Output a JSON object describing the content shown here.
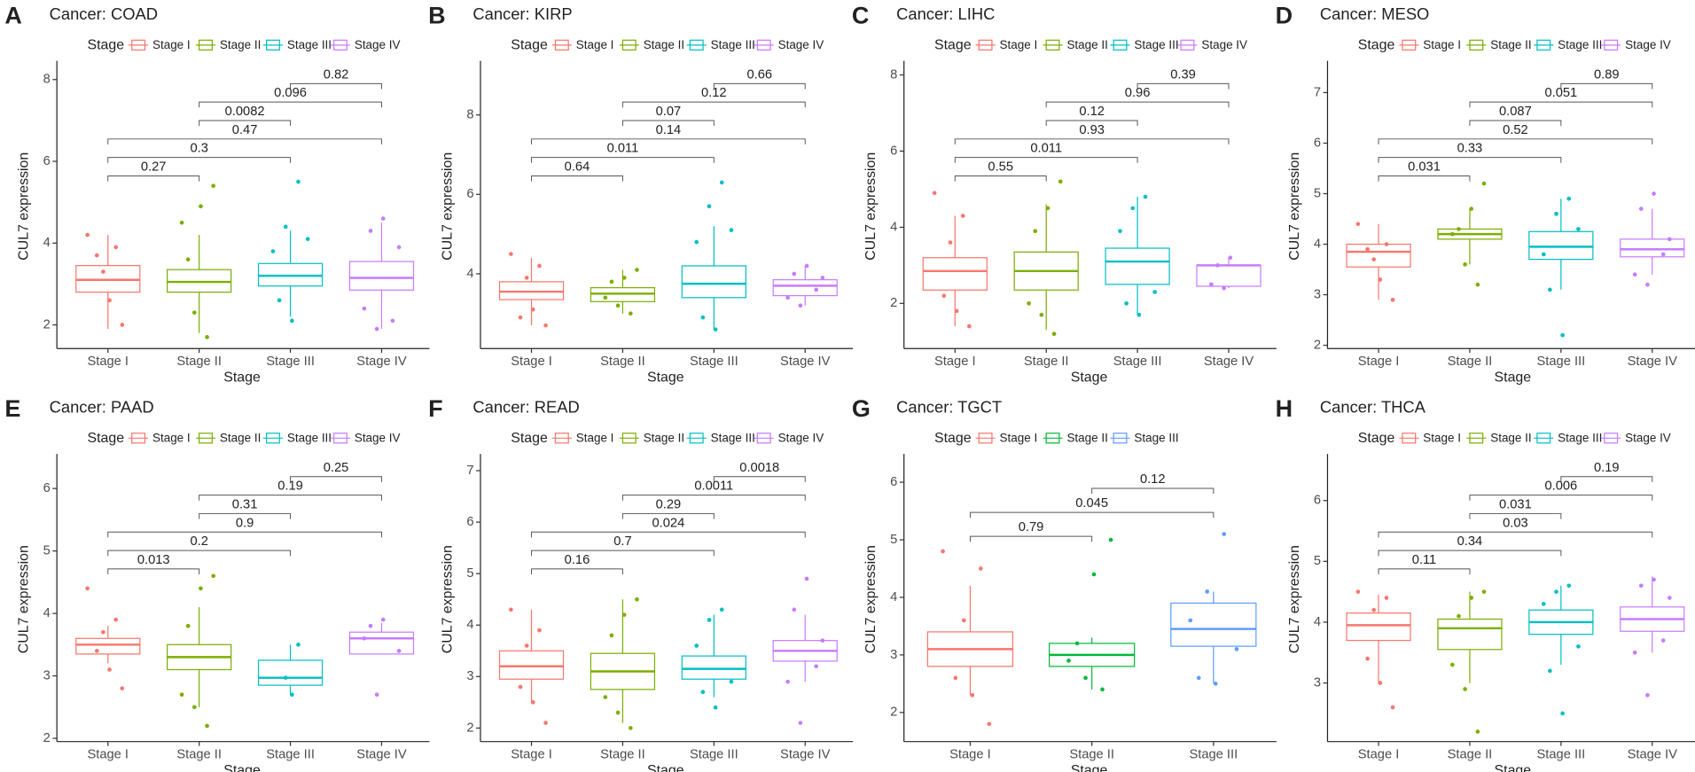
{
  "chart_data": [
    {
      "type": "box",
      "label": "A",
      "title": "Cancer: COAD",
      "legend_title": "Stage",
      "x_label": "Stage",
      "y_label": "CUL7 expression",
      "categories": [
        "Stage I",
        "Stage II",
        "Stage III",
        "Stage IV"
      ],
      "ylim": [
        1.5,
        8.3
      ],
      "yticks": [
        2,
        4,
        6,
        8
      ],
      "series": [
        {
          "name": "Stage I",
          "color": "#F8766D",
          "q1": 2.8,
          "median": 3.1,
          "q3": 3.45,
          "whisker_low": 1.9,
          "whisker_high": 4.2,
          "points": [
            4.2,
            2.0,
            3.9,
            2.6,
            3.3,
            3.7
          ]
        },
        {
          "name": "Stage II",
          "color": "#7CAE00",
          "q1": 2.8,
          "median": 3.05,
          "q3": 3.35,
          "whisker_low": 1.8,
          "whisker_high": 4.2,
          "points": [
            5.4,
            1.7,
            4.9,
            2.3,
            3.6,
            4.5
          ]
        },
        {
          "name": "Stage III",
          "color": "#00BFC4",
          "q1": 2.95,
          "median": 3.2,
          "q3": 3.5,
          "whisker_low": 2.2,
          "whisker_high": 4.3,
          "points": [
            5.5,
            2.1,
            4.4,
            2.6,
            3.8,
            4.1
          ]
        },
        {
          "name": "Stage IV",
          "color": "#C77CFF",
          "q1": 2.85,
          "median": 3.15,
          "q3": 3.55,
          "whisker_low": 1.9,
          "whisker_high": 4.5,
          "points": [
            4.6,
            1.9,
            4.3,
            2.4,
            3.9,
            2.1
          ]
        }
      ],
      "comparisons": [
        {
          "groups": [
            "Stage I",
            "Stage II"
          ],
          "p": 0.27
        },
        {
          "groups": [
            "Stage I",
            "Stage III"
          ],
          "p": 0.3
        },
        {
          "groups": [
            "Stage I",
            "Stage IV"
          ],
          "p": 0.47
        },
        {
          "groups": [
            "Stage II",
            "Stage III"
          ],
          "p": 0.0082
        },
        {
          "groups": [
            "Stage II",
            "Stage IV"
          ],
          "p": 0.096
        },
        {
          "groups": [
            "Stage III",
            "Stage IV"
          ],
          "p": 0.82
        }
      ]
    },
    {
      "type": "box",
      "label": "B",
      "title": "Cancer: KIRP",
      "legend_title": "Stage",
      "x_label": "Stage",
      "y_label": "CUL7 expression",
      "categories": [
        "Stage I",
        "Stage II",
        "Stage III",
        "Stage IV"
      ],
      "ylim": [
        2.2,
        9.2
      ],
      "yticks": [
        4,
        6,
        8
      ],
      "series": [
        {
          "name": "Stage I",
          "color": "#F8766D",
          "q1": 3.35,
          "median": 3.55,
          "q3": 3.8,
          "whisker_low": 2.7,
          "whisker_high": 4.4,
          "points": [
            4.5,
            2.7,
            4.2,
            3.1,
            3.9,
            2.9
          ]
        },
        {
          "name": "Stage II",
          "color": "#7CAE00",
          "q1": 3.3,
          "median": 3.5,
          "q3": 3.65,
          "whisker_low": 3.0,
          "whisker_high": 4.1,
          "points": [
            4.1,
            3.0,
            3.9,
            3.2,
            3.8,
            3.4
          ]
        },
        {
          "name": "Stage III",
          "color": "#00BFC4",
          "q1": 3.4,
          "median": 3.75,
          "q3": 4.2,
          "whisker_low": 2.6,
          "whisker_high": 5.2,
          "points": [
            6.3,
            2.6,
            5.7,
            2.9,
            4.8,
            5.1
          ]
        },
        {
          "name": "Stage IV",
          "color": "#C77CFF",
          "q1": 3.45,
          "median": 3.7,
          "q3": 3.85,
          "whisker_low": 3.2,
          "whisker_high": 4.2,
          "points": [
            4.2,
            3.2,
            4.0,
            3.4,
            3.9,
            3.6
          ]
        }
      ],
      "comparisons": [
        {
          "groups": [
            "Stage I",
            "Stage II"
          ],
          "p": 0.64
        },
        {
          "groups": [
            "Stage I",
            "Stage III"
          ],
          "p": 0.011
        },
        {
          "groups": [
            "Stage I",
            "Stage IV"
          ],
          "p": 0.14
        },
        {
          "groups": [
            "Stage II",
            "Stage III"
          ],
          "p": 0.07
        },
        {
          "groups": [
            "Stage II",
            "Stage IV"
          ],
          "p": 0.12
        },
        {
          "groups": [
            "Stage III",
            "Stage IV"
          ],
          "p": 0.66
        }
      ]
    },
    {
      "type": "box",
      "label": "C",
      "title": "Cancer: LIHC",
      "legend_title": "Stage",
      "x_label": "Stage",
      "y_label": "CUL7 expression",
      "categories": [
        "Stage I",
        "Stage II",
        "Stage III",
        "Stage IV"
      ],
      "ylim": [
        0.9,
        8.2
      ],
      "yticks": [
        2,
        4,
        6,
        8
      ],
      "series": [
        {
          "name": "Stage I",
          "color": "#F8766D",
          "q1": 2.35,
          "median": 2.85,
          "q3": 3.2,
          "whisker_low": 1.4,
          "whisker_high": 4.3,
          "points": [
            4.9,
            1.4,
            4.3,
            1.8,
            3.6,
            2.2
          ]
        },
        {
          "name": "Stage II",
          "color": "#7CAE00",
          "q1": 2.35,
          "median": 2.85,
          "q3": 3.35,
          "whisker_low": 1.3,
          "whisker_high": 4.6,
          "points": [
            5.2,
            1.2,
            4.5,
            1.7,
            3.9,
            2.0
          ]
        },
        {
          "name": "Stage III",
          "color": "#00BFC4",
          "q1": 2.5,
          "median": 3.1,
          "q3": 3.45,
          "whisker_low": 1.7,
          "whisker_high": 4.8,
          "points": [
            4.8,
            1.7,
            4.5,
            2.0,
            3.9,
            2.3
          ]
        },
        {
          "name": "Stage IV",
          "color": "#C77CFF",
          "q1": 2.45,
          "median": 3.0,
          "q3": 3.0,
          "whisker_low": 2.4,
          "whisker_high": 3.2,
          "points": [
            3.2,
            2.4,
            3.0,
            2.5
          ]
        }
      ],
      "comparisons": [
        {
          "groups": [
            "Stage I",
            "Stage II"
          ],
          "p": 0.55
        },
        {
          "groups": [
            "Stage I",
            "Stage III"
          ],
          "p": 0.011
        },
        {
          "groups": [
            "Stage I",
            "Stage IV"
          ],
          "p": 0.93
        },
        {
          "groups": [
            "Stage II",
            "Stage III"
          ],
          "p": 0.12
        },
        {
          "groups": [
            "Stage II",
            "Stage IV"
          ],
          "p": 0.96
        },
        {
          "groups": [
            "Stage III",
            "Stage IV"
          ],
          "p": 0.39
        }
      ]
    },
    {
      "type": "box",
      "label": "D",
      "title": "Cancer: MESO",
      "legend_title": "Stage",
      "x_label": "Stage",
      "y_label": "CUL7 expression",
      "categories": [
        "Stage I",
        "Stage II",
        "Stage III",
        "Stage IV"
      ],
      "ylim": [
        2,
        7.5
      ],
      "yticks": [
        2,
        3,
        4,
        5,
        6,
        7
      ],
      "series": [
        {
          "name": "Stage I",
          "color": "#F8766D",
          "q1": 3.55,
          "median": 3.85,
          "q3": 4.0,
          "whisker_low": 2.9,
          "whisker_high": 4.4,
          "points": [
            4.4,
            2.9,
            4.0,
            3.3,
            3.7,
            3.9
          ]
        },
        {
          "name": "Stage II",
          "color": "#7CAE00",
          "q1": 4.1,
          "median": 4.2,
          "q3": 4.3,
          "whisker_low": 3.6,
          "whisker_high": 4.7,
          "points": [
            5.2,
            3.2,
            4.7,
            3.6,
            4.3,
            4.2
          ]
        },
        {
          "name": "Stage III",
          "color": "#00BFC4",
          "q1": 3.7,
          "median": 3.95,
          "q3": 4.25,
          "whisker_low": 3.1,
          "whisker_high": 4.9,
          "points": [
            4.9,
            2.2,
            4.6,
            3.1,
            3.8,
            4.3
          ]
        },
        {
          "name": "Stage IV",
          "color": "#C77CFF",
          "q1": 3.75,
          "median": 3.9,
          "q3": 4.1,
          "whisker_low": 3.4,
          "whisker_high": 4.7,
          "points": [
            5.0,
            3.2,
            4.7,
            3.4,
            4.1,
            3.8
          ]
        }
      ],
      "comparisons": [
        {
          "groups": [
            "Stage I",
            "Stage II"
          ],
          "p": 0.031
        },
        {
          "groups": [
            "Stage I",
            "Stage III"
          ],
          "p": 0.33
        },
        {
          "groups": [
            "Stage I",
            "Stage IV"
          ],
          "p": 0.52
        },
        {
          "groups": [
            "Stage II",
            "Stage III"
          ],
          "p": 0.087
        },
        {
          "groups": [
            "Stage II",
            "Stage IV"
          ],
          "p": 0.051
        },
        {
          "groups": [
            "Stage III",
            "Stage IV"
          ],
          "p": 0.89
        }
      ]
    },
    {
      "type": "box",
      "label": "E",
      "title": "Cancer: PAAD",
      "legend_title": "Stage",
      "x_label": "Stage",
      "y_label": "CUL7 expression",
      "categories": [
        "Stage I",
        "Stage II",
        "Stage III",
        "Stage IV"
      ],
      "ylim": [
        2,
        6.45
      ],
      "yticks": [
        2,
        3,
        4,
        5,
        6
      ],
      "series": [
        {
          "name": "Stage I",
          "color": "#F8766D",
          "q1": 3.35,
          "median": 3.5,
          "q3": 3.6,
          "whisker_low": 3.2,
          "whisker_high": 3.8,
          "points": [
            4.4,
            2.8,
            3.9,
            3.1,
            3.7,
            3.4
          ]
        },
        {
          "name": "Stage II",
          "color": "#7CAE00",
          "q1": 3.1,
          "median": 3.3,
          "q3": 3.5,
          "whisker_low": 2.5,
          "whisker_high": 4.1,
          "points": [
            4.6,
            2.2,
            4.4,
            2.5,
            3.8,
            2.7
          ]
        },
        {
          "name": "Stage III",
          "color": "#00BFC4",
          "q1": 2.85,
          "median": 2.97,
          "q3": 3.25,
          "whisker_low": 2.7,
          "whisker_high": 3.5,
          "points": [
            3.5,
            2.7,
            2.97
          ]
        },
        {
          "name": "Stage IV",
          "color": "#C77CFF",
          "q1": 3.35,
          "median": 3.6,
          "q3": 3.7,
          "whisker_low": 3.35,
          "whisker_high": 3.85,
          "points": [
            3.9,
            2.7,
            3.8,
            3.6,
            3.4
          ]
        }
      ],
      "comparisons": [
        {
          "groups": [
            "Stage I",
            "Stage II"
          ],
          "p": 0.013
        },
        {
          "groups": [
            "Stage I",
            "Stage III"
          ],
          "p": 0.2
        },
        {
          "groups": [
            "Stage I",
            "Stage IV"
          ],
          "p": 0.9
        },
        {
          "groups": [
            "Stage II",
            "Stage III"
          ],
          "p": 0.31
        },
        {
          "groups": [
            "Stage II",
            "Stage IV"
          ],
          "p": 0.19
        },
        {
          "groups": [
            "Stage III",
            "Stage IV"
          ],
          "p": 0.25
        }
      ]
    },
    {
      "type": "box",
      "label": "F",
      "title": "Cancer: READ",
      "legend_title": "Stage",
      "x_label": "Stage",
      "y_label": "CUL7 expression",
      "categories": [
        "Stage I",
        "Stage II",
        "Stage III",
        "Stage IV"
      ],
      "ylim": [
        1.8,
        7.2
      ],
      "yticks": [
        2,
        3,
        4,
        5,
        6,
        7
      ],
      "series": [
        {
          "name": "Stage I",
          "color": "#F8766D",
          "q1": 2.95,
          "median": 3.2,
          "q3": 3.5,
          "whisker_low": 2.5,
          "whisker_high": 4.3,
          "points": [
            4.3,
            2.1,
            3.9,
            2.5,
            3.6,
            2.8
          ]
        },
        {
          "name": "Stage II",
          "color": "#7CAE00",
          "q1": 2.75,
          "median": 3.1,
          "q3": 3.45,
          "whisker_low": 2.1,
          "whisker_high": 4.5,
          "points": [
            4.5,
            2.0,
            4.2,
            2.3,
            3.8,
            2.6
          ]
        },
        {
          "name": "Stage III",
          "color": "#00BFC4",
          "q1": 2.95,
          "median": 3.15,
          "q3": 3.4,
          "whisker_low": 2.6,
          "whisker_high": 4.2,
          "points": [
            4.3,
            2.4,
            4.1,
            2.7,
            3.6,
            2.9
          ]
        },
        {
          "name": "Stage IV",
          "color": "#C77CFF",
          "q1": 3.3,
          "median": 3.5,
          "q3": 3.7,
          "whisker_low": 2.9,
          "whisker_high": 4.2,
          "points": [
            4.9,
            2.1,
            4.3,
            2.9,
            3.7,
            3.2
          ]
        }
      ],
      "comparisons": [
        {
          "groups": [
            "Stage I",
            "Stage II"
          ],
          "p": 0.16
        },
        {
          "groups": [
            "Stage I",
            "Stage III"
          ],
          "p": 0.7
        },
        {
          "groups": [
            "Stage I",
            "Stage IV"
          ],
          "p": 0.024
        },
        {
          "groups": [
            "Stage II",
            "Stage III"
          ],
          "p": 0.29
        },
        {
          "groups": [
            "Stage II",
            "Stage IV"
          ],
          "p": 0.0011
        },
        {
          "groups": [
            "Stage III",
            "Stage IV"
          ],
          "p": 0.0018
        }
      ]
    },
    {
      "type": "box",
      "label": "G",
      "title": "Cancer: TGCT",
      "legend_title": "Stage",
      "x_label": "Stage",
      "y_label": "CUL7 expression",
      "categories": [
        "Stage I",
        "Stage II",
        "Stage III"
      ],
      "ylim": [
        1.55,
        6.38
      ],
      "yticks": [
        2,
        3,
        4,
        5,
        6
      ],
      "series": [
        {
          "name": "Stage I",
          "color": "#F8766D",
          "q1": 2.8,
          "median": 3.1,
          "q3": 3.4,
          "whisker_low": 2.3,
          "whisker_high": 4.2,
          "points": [
            4.8,
            1.8,
            4.5,
            2.3,
            3.6,
            2.6
          ]
        },
        {
          "name": "Stage II",
          "color": "#00BA38",
          "q1": 2.8,
          "median": 3.0,
          "q3": 3.2,
          "whisker_low": 2.4,
          "whisker_high": 3.3,
          "points": [
            5.0,
            2.4,
            4.4,
            2.6,
            3.2,
            2.9
          ]
        },
        {
          "name": "Stage III",
          "color": "#619CFF",
          "q1": 3.15,
          "median": 3.45,
          "q3": 3.9,
          "whisker_low": 2.5,
          "whisker_high": 4.1,
          "points": [
            5.1,
            2.5,
            4.1,
            2.6,
            3.6,
            3.1
          ]
        }
      ],
      "comparisons": [
        {
          "groups": [
            "Stage I",
            "Stage II"
          ],
          "p": 0.79
        },
        {
          "groups": [
            "Stage I",
            "Stage III"
          ],
          "p": 0.045
        },
        {
          "groups": [
            "Stage II",
            "Stage III"
          ],
          "p": 0.12
        }
      ]
    },
    {
      "type": "box",
      "label": "H",
      "title": "Cancer: THCA",
      "legend_title": "Stage",
      "x_label": "Stage",
      "y_label": "CUL7 expression",
      "categories": [
        "Stage I",
        "Stage II",
        "Stage III",
        "Stage IV"
      ],
      "ylim": [
        2.09,
        6.66
      ],
      "yticks": [
        3,
        4,
        5,
        6
      ],
      "series": [
        {
          "name": "Stage I",
          "color": "#F8766D",
          "q1": 3.7,
          "median": 3.95,
          "q3": 4.15,
          "whisker_low": 3.0,
          "whisker_high": 4.45,
          "points": [
            4.5,
            2.6,
            4.4,
            3.0,
            4.2,
            3.4
          ]
        },
        {
          "name": "Stage II",
          "color": "#7CAE00",
          "q1": 3.55,
          "median": 3.9,
          "q3": 4.05,
          "whisker_low": 3.0,
          "whisker_high": 4.5,
          "points": [
            4.5,
            2.2,
            4.4,
            2.9,
            4.1,
            3.3
          ]
        },
        {
          "name": "Stage III",
          "color": "#00BFC4",
          "q1": 3.8,
          "median": 4.0,
          "q3": 4.2,
          "whisker_low": 3.3,
          "whisker_high": 4.6,
          "points": [
            4.6,
            2.5,
            4.5,
            3.2,
            4.3,
            3.6
          ]
        },
        {
          "name": "Stage IV",
          "color": "#C77CFF",
          "q1": 3.85,
          "median": 4.05,
          "q3": 4.25,
          "whisker_low": 3.5,
          "whisker_high": 4.75,
          "points": [
            4.7,
            2.8,
            4.6,
            3.5,
            4.4,
            3.7
          ]
        }
      ],
      "comparisons": [
        {
          "groups": [
            "Stage I",
            "Stage II"
          ],
          "p": 0.11
        },
        {
          "groups": [
            "Stage I",
            "Stage III"
          ],
          "p": 0.34
        },
        {
          "groups": [
            "Stage I",
            "Stage IV"
          ],
          "p": 0.03
        },
        {
          "groups": [
            "Stage II",
            "Stage III"
          ],
          "p": 0.031
        },
        {
          "groups": [
            "Stage II",
            "Stage IV"
          ],
          "p": 0.006
        },
        {
          "groups": [
            "Stage III",
            "Stage IV"
          ],
          "p": 0.19
        }
      ]
    }
  ]
}
